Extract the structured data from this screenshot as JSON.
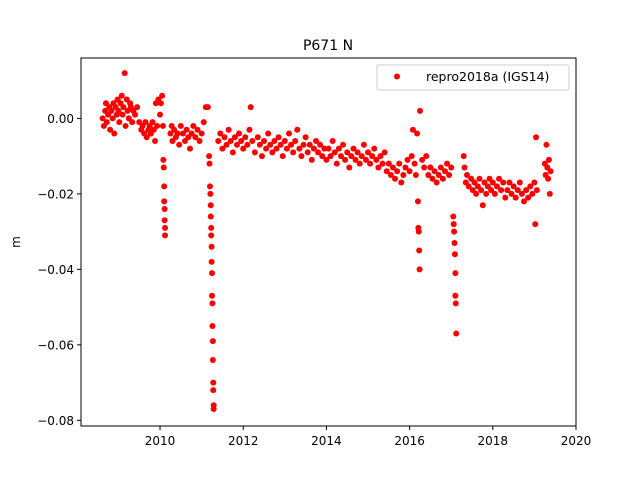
{
  "chart_data": {
    "type": "scatter",
    "title": "P671 N",
    "xlabel": "",
    "ylabel": "m",
    "xlim": [
      2008.1,
      2020.0
    ],
    "ylim": [
      -0.0815,
      0.016
    ],
    "xticks": [
      2010,
      2012,
      2014,
      2016,
      2018,
      2020
    ],
    "xtick_labels": [
      "2010",
      "2012",
      "2014",
      "2016",
      "2018",
      "2020"
    ],
    "yticks": [
      0.0,
      -0.02,
      -0.04,
      -0.06,
      -0.08
    ],
    "ytick_labels": [
      "0.00",
      "−0.02",
      "−0.04",
      "−0.06",
      "−0.08"
    ],
    "grid": false,
    "legend": {
      "placement": "top-right",
      "entries": [
        "repro2018a (IGS14)"
      ]
    },
    "series": [
      {
        "name": "repro2018a (IGS14)",
        "color": "#ff0000",
        "marker": "circle",
        "points": [
          [
            2008.62,
            0.0
          ],
          [
            2008.65,
            -0.002
          ],
          [
            2008.68,
            0.002
          ],
          [
            2008.7,
            0.004
          ],
          [
            2008.72,
            -0.001
          ],
          [
            2008.75,
            0.001
          ],
          [
            2008.78,
            0.003
          ],
          [
            2008.8,
            -0.003
          ],
          [
            2008.83,
            0.002
          ],
          [
            2008.86,
            0.0
          ],
          [
            2008.88,
            0.004
          ],
          [
            2008.9,
            -0.004
          ],
          [
            2008.93,
            0.003
          ],
          [
            2008.96,
            0.001
          ],
          [
            2008.98,
            0.005
          ],
          [
            2009.0,
            0.002
          ],
          [
            2009.02,
            -0.001
          ],
          [
            2009.05,
            0.004
          ],
          [
            2009.08,
            0.006
          ],
          [
            2009.1,
            0.001
          ],
          [
            2009.12,
            0.003
          ],
          [
            2009.15,
            0.012
          ],
          [
            2009.17,
            -0.002
          ],
          [
            2009.2,
            0.005
          ],
          [
            2009.22,
            0.002
          ],
          [
            2009.25,
            0.0
          ],
          [
            2009.28,
            0.004
          ],
          [
            2009.3,
            0.003
          ],
          [
            2009.33,
            -0.001
          ],
          [
            2009.36,
            0.002
          ],
          [
            2009.4,
            0.001
          ],
          [
            2009.45,
            0.003
          ],
          [
            2009.5,
            -0.001
          ],
          [
            2009.55,
            -0.003
          ],
          [
            2009.58,
            -0.002
          ],
          [
            2009.62,
            -0.004
          ],
          [
            2009.65,
            -0.001
          ],
          [
            2009.68,
            -0.005
          ],
          [
            2009.72,
            -0.003
          ],
          [
            2009.75,
            -0.002
          ],
          [
            2009.78,
            -0.004
          ],
          [
            2009.82,
            -0.001
          ],
          [
            2009.85,
            -0.003
          ],
          [
            2009.88,
            -0.006
          ],
          [
            2009.9,
            0.004
          ],
          [
            2009.93,
            -0.002
          ],
          [
            2009.96,
            0.005
          ],
          [
            2010.0,
            0.001
          ],
          [
            2010.02,
            0.004
          ],
          [
            2010.05,
            0.006
          ],
          [
            2010.07,
            -0.002
          ],
          [
            2010.08,
            -0.011
          ],
          [
            2010.09,
            -0.013
          ],
          [
            2010.1,
            -0.018
          ],
          [
            2010.1,
            -0.022
          ],
          [
            2010.11,
            -0.024
          ],
          [
            2010.11,
            -0.027
          ],
          [
            2010.12,
            -0.029
          ],
          [
            2010.12,
            -0.031
          ],
          [
            2010.25,
            -0.004
          ],
          [
            2010.28,
            -0.002
          ],
          [
            2010.3,
            -0.006
          ],
          [
            2010.34,
            -0.003
          ],
          [
            2010.38,
            -0.005
          ],
          [
            2010.42,
            -0.004
          ],
          [
            2010.46,
            -0.007
          ],
          [
            2010.5,
            -0.002
          ],
          [
            2010.55,
            -0.004
          ],
          [
            2010.6,
            -0.006
          ],
          [
            2010.64,
            -0.003
          ],
          [
            2010.68,
            -0.005
          ],
          [
            2010.72,
            -0.008
          ],
          [
            2010.76,
            -0.004
          ],
          [
            2010.8,
            -0.002
          ],
          [
            2010.85,
            -0.005
          ],
          [
            2010.9,
            -0.003
          ],
          [
            2010.95,
            -0.006
          ],
          [
            2011.0,
            -0.004
          ],
          [
            2011.05,
            -0.001
          ],
          [
            2011.1,
            0.003
          ],
          [
            2011.15,
            0.003
          ],
          [
            2011.18,
            -0.01
          ],
          [
            2011.19,
            -0.012
          ],
          [
            2011.2,
            -0.018
          ],
          [
            2011.21,
            -0.02
          ],
          [
            2011.22,
            -0.023
          ],
          [
            2011.22,
            -0.026
          ],
          [
            2011.23,
            -0.029
          ],
          [
            2011.23,
            -0.031
          ],
          [
            2011.24,
            -0.034
          ],
          [
            2011.24,
            -0.038
          ],
          [
            2011.25,
            -0.041
          ],
          [
            2011.25,
            -0.047
          ],
          [
            2011.26,
            -0.049
          ],
          [
            2011.26,
            -0.055
          ],
          [
            2011.27,
            -0.059
          ],
          [
            2011.27,
            -0.064
          ],
          [
            2011.28,
            -0.07
          ],
          [
            2011.28,
            -0.072
          ],
          [
            2011.29,
            -0.076
          ],
          [
            2011.29,
            -0.077
          ],
          [
            2011.4,
            -0.006
          ],
          [
            2011.45,
            -0.004
          ],
          [
            2011.5,
            -0.008
          ],
          [
            2011.55,
            -0.005
          ],
          [
            2011.6,
            -0.007
          ],
          [
            2011.65,
            -0.003
          ],
          [
            2011.7,
            -0.006
          ],
          [
            2011.75,
            -0.009
          ],
          [
            2011.8,
            -0.005
          ],
          [
            2011.85,
            -0.007
          ],
          [
            2011.9,
            -0.004
          ],
          [
            2011.95,
            -0.006
          ],
          [
            2012.0,
            -0.008
          ],
          [
            2012.05,
            -0.005
          ],
          [
            2012.1,
            -0.007
          ],
          [
            2012.15,
            -0.003
          ],
          [
            2012.18,
            0.003
          ],
          [
            2012.22,
            -0.006
          ],
          [
            2012.28,
            -0.009
          ],
          [
            2012.35,
            -0.005
          ],
          [
            2012.4,
            -0.007
          ],
          [
            2012.45,
            -0.01
          ],
          [
            2012.5,
            -0.006
          ],
          [
            2012.55,
            -0.008
          ],
          [
            2012.6,
            -0.004
          ],
          [
            2012.65,
            -0.007
          ],
          [
            2012.7,
            -0.009
          ],
          [
            2012.75,
            -0.006
          ],
          [
            2012.8,
            -0.008
          ],
          [
            2012.85,
            -0.005
          ],
          [
            2012.9,
            -0.007
          ],
          [
            2012.95,
            -0.01
          ],
          [
            2013.0,
            -0.006
          ],
          [
            2013.05,
            -0.008
          ],
          [
            2013.1,
            -0.004
          ],
          [
            2013.15,
            -0.007
          ],
          [
            2013.2,
            -0.009
          ],
          [
            2013.25,
            -0.006
          ],
          [
            2013.3,
            -0.003
          ],
          [
            2013.35,
            -0.008
          ],
          [
            2013.4,
            -0.01
          ],
          [
            2013.45,
            -0.007
          ],
          [
            2013.5,
            -0.005
          ],
          [
            2013.55,
            -0.009
          ],
          [
            2013.6,
            -0.007
          ],
          [
            2013.65,
            -0.011
          ],
          [
            2013.7,
            -0.008
          ],
          [
            2013.75,
            -0.006
          ],
          [
            2013.8,
            -0.009
          ],
          [
            2013.85,
            -0.007
          ],
          [
            2013.9,
            -0.01
          ],
          [
            2013.95,
            -0.008
          ],
          [
            2014.0,
            -0.011
          ],
          [
            2014.05,
            -0.008
          ],
          [
            2014.1,
            -0.01
          ],
          [
            2014.15,
            -0.006
          ],
          [
            2014.2,
            -0.009
          ],
          [
            2014.25,
            -0.012
          ],
          [
            2014.3,
            -0.008
          ],
          [
            2014.35,
            -0.01
          ],
          [
            2014.4,
            -0.007
          ],
          [
            2014.45,
            -0.011
          ],
          [
            2014.5,
            -0.009
          ],
          [
            2014.55,
            -0.013
          ],
          [
            2014.6,
            -0.01
          ],
          [
            2014.65,
            -0.008
          ],
          [
            2014.7,
            -0.011
          ],
          [
            2014.75,
            -0.009
          ],
          [
            2014.8,
            -0.012
          ],
          [
            2014.85,
            -0.01
          ],
          [
            2014.9,
            -0.007
          ],
          [
            2014.95,
            -0.011
          ],
          [
            2015.0,
            -0.009
          ],
          [
            2015.05,
            -0.012
          ],
          [
            2015.1,
            -0.01
          ],
          [
            2015.15,
            -0.008
          ],
          [
            2015.2,
            -0.011
          ],
          [
            2015.25,
            -0.013
          ],
          [
            2015.3,
            -0.01
          ],
          [
            2015.35,
            -0.012
          ],
          [
            2015.4,
            -0.009
          ],
          [
            2015.45,
            -0.014
          ],
          [
            2015.5,
            -0.012
          ],
          [
            2015.55,
            -0.015
          ],
          [
            2015.6,
            -0.013
          ],
          [
            2015.65,
            -0.016
          ],
          [
            2015.7,
            -0.014
          ],
          [
            2015.75,
            -0.012
          ],
          [
            2015.8,
            -0.017
          ],
          [
            2015.85,
            -0.015
          ],
          [
            2015.9,
            -0.013
          ],
          [
            2015.95,
            -0.011
          ],
          [
            2016.0,
            -0.014
          ],
          [
            2016.05,
            -0.01
          ],
          [
            2016.08,
            -0.003
          ],
          [
            2016.12,
            -0.012
          ],
          [
            2016.15,
            -0.015
          ],
          [
            2016.18,
            -0.004
          ],
          [
            2016.2,
            -0.022
          ],
          [
            2016.21,
            -0.029
          ],
          [
            2016.22,
            -0.03
          ],
          [
            2016.23,
            -0.035
          ],
          [
            2016.24,
            -0.04
          ],
          [
            2016.25,
            0.002
          ],
          [
            2016.3,
            -0.011
          ],
          [
            2016.35,
            -0.013
          ],
          [
            2016.4,
            -0.01
          ],
          [
            2016.45,
            -0.015
          ],
          [
            2016.5,
            -0.013
          ],
          [
            2016.55,
            -0.016
          ],
          [
            2016.6,
            -0.014
          ],
          [
            2016.65,
            -0.017
          ],
          [
            2016.7,
            -0.015
          ],
          [
            2016.75,
            -0.013
          ],
          [
            2016.8,
            -0.016
          ],
          [
            2016.85,
            -0.014
          ],
          [
            2016.9,
            -0.012
          ],
          [
            2016.95,
            -0.015
          ],
          [
            2017.0,
            -0.013
          ],
          [
            2017.05,
            -0.026
          ],
          [
            2017.06,
            -0.028
          ],
          [
            2017.07,
            -0.03
          ],
          [
            2017.08,
            -0.033
          ],
          [
            2017.09,
            -0.036
          ],
          [
            2017.1,
            -0.041
          ],
          [
            2017.1,
            -0.047
          ],
          [
            2017.11,
            -0.049
          ],
          [
            2017.12,
            -0.057
          ],
          [
            2017.3,
            -0.01
          ],
          [
            2017.32,
            -0.013
          ],
          [
            2017.35,
            -0.017
          ],
          [
            2017.38,
            -0.015
          ],
          [
            2017.42,
            -0.018
          ],
          [
            2017.48,
            -0.016
          ],
          [
            2017.52,
            -0.019
          ],
          [
            2017.56,
            -0.017
          ],
          [
            2017.6,
            -0.02
          ],
          [
            2017.64,
            -0.018
          ],
          [
            2017.68,
            -0.016
          ],
          [
            2017.72,
            -0.019
          ],
          [
            2017.76,
            -0.023
          ],
          [
            2017.8,
            -0.017
          ],
          [
            2017.84,
            -0.02
          ],
          [
            2017.88,
            -0.018
          ],
          [
            2017.92,
            -0.016
          ],
          [
            2017.96,
            -0.019
          ],
          [
            2018.0,
            -0.017
          ],
          [
            2018.05,
            -0.02
          ],
          [
            2018.1,
            -0.018
          ],
          [
            2018.15,
            -0.016
          ],
          [
            2018.2,
            -0.019
          ],
          [
            2018.25,
            -0.017
          ],
          [
            2018.3,
            -0.021
          ],
          [
            2018.35,
            -0.019
          ],
          [
            2018.4,
            -0.017
          ],
          [
            2018.45,
            -0.02
          ],
          [
            2018.5,
            -0.018
          ],
          [
            2018.55,
            -0.021
          ],
          [
            2018.6,
            -0.019
          ],
          [
            2018.65,
            -0.017
          ],
          [
            2018.7,
            -0.02
          ],
          [
            2018.75,
            -0.022
          ],
          [
            2018.8,
            -0.019
          ],
          [
            2018.85,
            -0.021
          ],
          [
            2018.9,
            -0.018
          ],
          [
            2018.95,
            -0.02
          ],
          [
            2019.0,
            -0.017
          ],
          [
            2019.02,
            -0.028
          ],
          [
            2019.04,
            -0.005
          ],
          [
            2019.06,
            -0.019
          ],
          [
            2019.25,
            -0.012
          ],
          [
            2019.27,
            -0.015
          ],
          [
            2019.29,
            -0.007
          ],
          [
            2019.31,
            -0.013
          ],
          [
            2019.33,
            -0.016
          ],
          [
            2019.35,
            -0.011
          ],
          [
            2019.37,
            -0.02
          ],
          [
            2019.39,
            -0.014
          ]
        ]
      }
    ]
  }
}
